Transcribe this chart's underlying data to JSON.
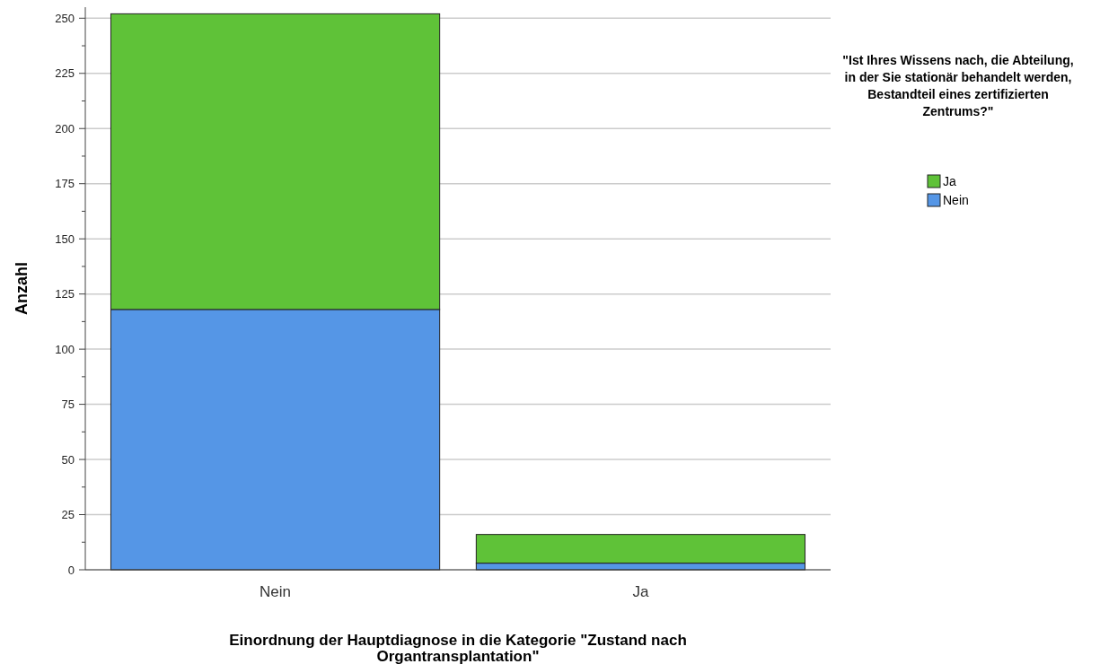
{
  "chart_data": {
    "type": "bar",
    "stacked": true,
    "xlabel": "Einordnung der Hauptdiagnose in die Kategorie \"Zustand nach Organtransplantation\"",
    "ylabel": "Anzahl",
    "legend_title": "\"Ist Ihres Wissens nach, die Abteilung, in der Sie stationär behandelt werden, Bestandteil eines zertifizierten Zentrums?\"",
    "categories": [
      "Nein",
      "Ja"
    ],
    "series": [
      {
        "name": "Nein",
        "color": "#5596e6",
        "values": [
          118,
          3
        ]
      },
      {
        "name": "Ja",
        "color": "#5fc238",
        "values": [
          134,
          13
        ]
      }
    ],
    "ylim": [
      0,
      255
    ],
    "yticks": [
      0,
      {
        "value": 12.5,
        "label": null
      },
      25,
      {
        "value": 37.5,
        "label": null
      },
      50,
      {
        "value": 62.5,
        "label": null
      },
      75,
      {
        "value": 87.5,
        "label": null
      },
      100,
      {
        "value": 112.5,
        "label": null
      },
      125,
      {
        "value": 137.5,
        "label": null
      },
      150,
      {
        "value": 162.5,
        "label": null
      },
      175,
      {
        "value": 187.5,
        "label": null
      },
      200,
      {
        "value": 212.5,
        "label": null
      },
      225,
      {
        "value": 237.5,
        "label": null
      },
      250
    ],
    "grid": "y",
    "legend": "right"
  }
}
